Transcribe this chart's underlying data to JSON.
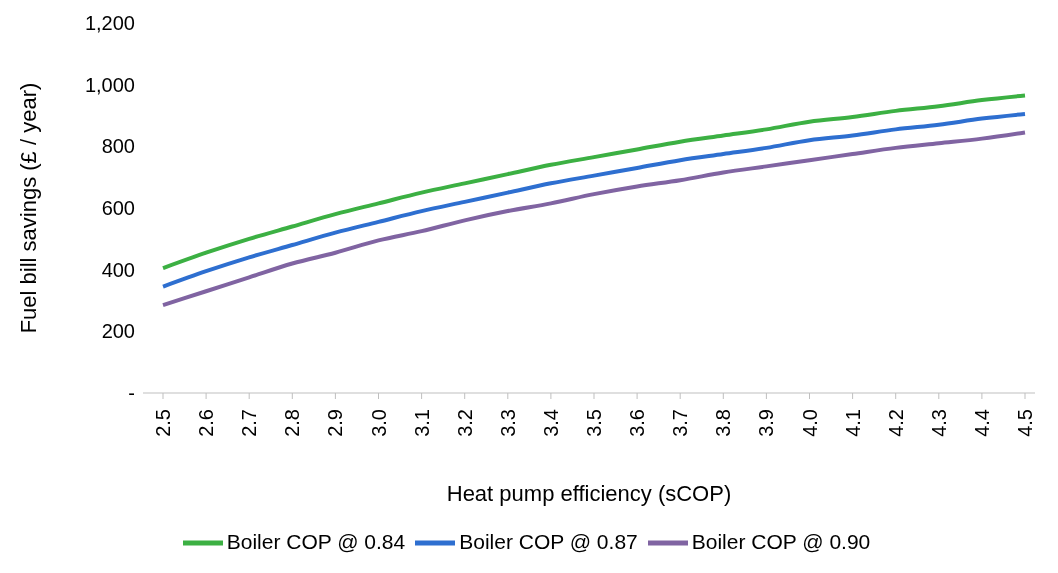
{
  "chart_data": {
    "type": "line",
    "xlabel": "Heat pump efficiency (sCOP)",
    "ylabel": "Fuel bill savings (£ / year)",
    "categories": [
      "2.5",
      "2.6",
      "2.7",
      "2.8",
      "2.9",
      "3.0",
      "3.1",
      "3.2",
      "3.3",
      "3.4",
      "3.5",
      "3.6",
      "3.7",
      "3.8",
      "3.9",
      "4.0",
      "4.1",
      "4.2",
      "4.3",
      "4.4",
      "4.5"
    ],
    "series": [
      {
        "name": "Boiler COP @ 0.84",
        "color": "#3cb043",
        "values": [
          405,
          455,
          500,
          540,
          580,
          615,
          650,
          680,
          710,
          740,
          765,
          790,
          815,
          835,
          855,
          880,
          895,
          915,
          930,
          950,
          965
        ]
      },
      {
        "name": "Boiler COP @ 0.87",
        "color": "#2e6fd0",
        "values": [
          345,
          395,
          440,
          480,
          520,
          555,
          590,
          620,
          650,
          680,
          705,
          730,
          755,
          775,
          795,
          820,
          835,
          855,
          870,
          890,
          905
        ]
      },
      {
        "name": "Boiler COP @ 0.90",
        "color": "#8064a2",
        "values": [
          285,
          330,
          375,
          420,
          455,
          495,
          525,
          560,
          590,
          615,
          645,
          670,
          690,
          715,
          735,
          755,
          775,
          795,
          810,
          825,
          845
        ]
      }
    ],
    "ylim": [
      0,
      1200
    ],
    "yticks": [
      {
        "value": 0,
        "label": "-"
      },
      {
        "value": 200,
        "label": "200"
      },
      {
        "value": 400,
        "label": "400"
      },
      {
        "value": 600,
        "label": "600"
      },
      {
        "value": 800,
        "label": "800"
      },
      {
        "value": 1000,
        "label": "1,000"
      },
      {
        "value": 1200,
        "label": "1,200"
      }
    ],
    "grid": false,
    "legend": "bottom",
    "marker": "none",
    "line_style": "solid"
  }
}
